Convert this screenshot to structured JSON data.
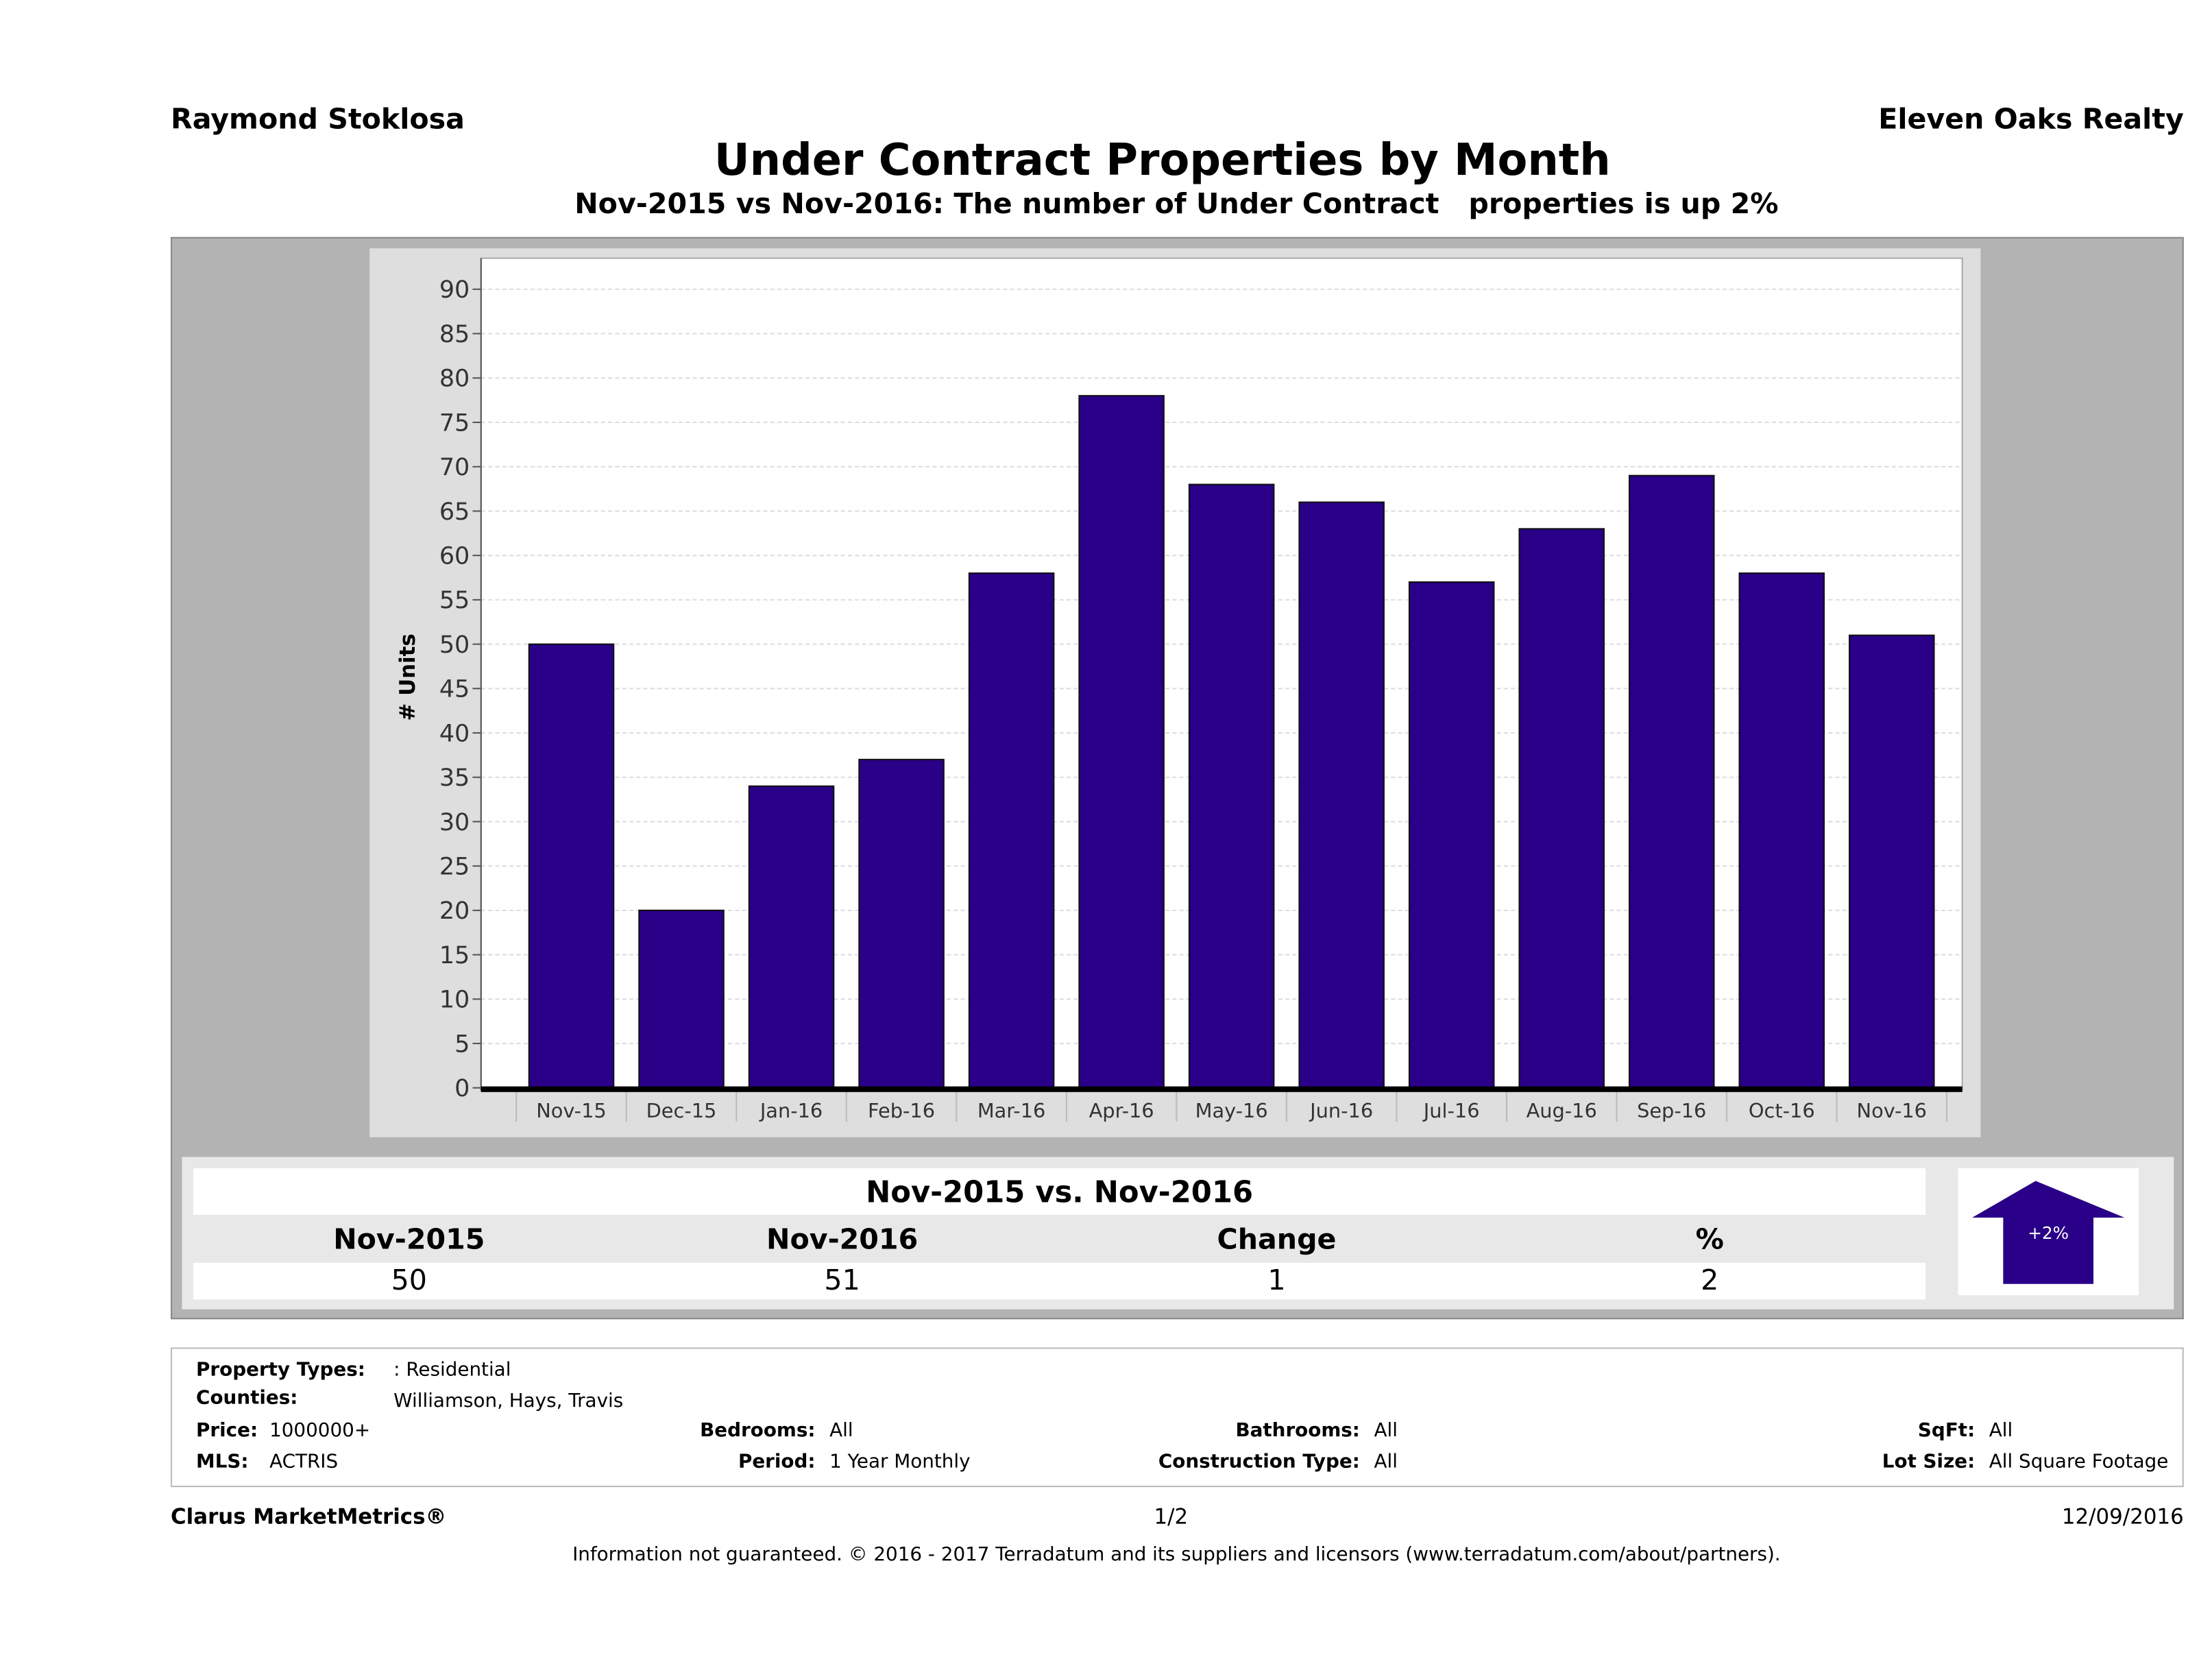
{
  "header": {
    "agent": "Raymond Stoklosa",
    "company": "Eleven Oaks Realty",
    "title": "Under Contract Properties by Month",
    "subtitle": "Nov-2015 vs Nov-2016: The number of Under Contract   properties is up 2%"
  },
  "chart_data": {
    "type": "bar",
    "categories": [
      "Nov-15",
      "Dec-15",
      "Jan-16",
      "Feb-16",
      "Mar-16",
      "Apr-16",
      "May-16",
      "Jun-16",
      "Jul-16",
      "Aug-16",
      "Sep-16",
      "Oct-16",
      "Nov-16"
    ],
    "values": [
      50,
      20,
      34,
      37,
      58,
      78,
      68,
      66,
      57,
      63,
      69,
      58,
      51
    ],
    "ylabel": "# Units",
    "xlabel": "",
    "ylim": [
      0,
      90
    ],
    "yticks": [
      0,
      5,
      10,
      15,
      20,
      25,
      30,
      35,
      40,
      45,
      50,
      55,
      60,
      65,
      70,
      75,
      80,
      85,
      90
    ],
    "grid": true,
    "bar_color": "#290087"
  },
  "summary": {
    "heading": "Nov-2015 vs. Nov-2016",
    "labels": [
      "Nov-2015",
      "Nov-2016",
      "Change",
      "%"
    ],
    "values": [
      "50",
      "51",
      "1",
      "2"
    ],
    "badge": "+2%",
    "badge_direction": "up",
    "badge_color": "#290087"
  },
  "info": {
    "property_types_label": "Property Types:",
    "property_types": ": Residential",
    "counties_label": "Counties:",
    "counties": "Williamson, Hays, Travis",
    "price_label": "Price:",
    "price": "1000000+",
    "mls_label": "MLS:",
    "mls": "ACTRIS",
    "bedrooms_label": "Bedrooms:",
    "bedrooms": "All",
    "period_label": "Period:",
    "period": "1 Year Monthly",
    "bathrooms_label": "Bathrooms:",
    "bathrooms": "All",
    "construction_label": "Construction Type:",
    "construction": "All",
    "sqft_label": "SqFt:",
    "sqft": "All",
    "lot_label": "Lot Size:",
    "lot": "All Square Footage"
  },
  "footer": {
    "brand": "Clarus MarketMetrics®",
    "page": "1/2",
    "date": "12/09/2016",
    "disclaimer": "Information not guaranteed. © 2016 - 2017 Terradatum and its suppliers and licensors (www.terradatum.com/about/partners)."
  }
}
